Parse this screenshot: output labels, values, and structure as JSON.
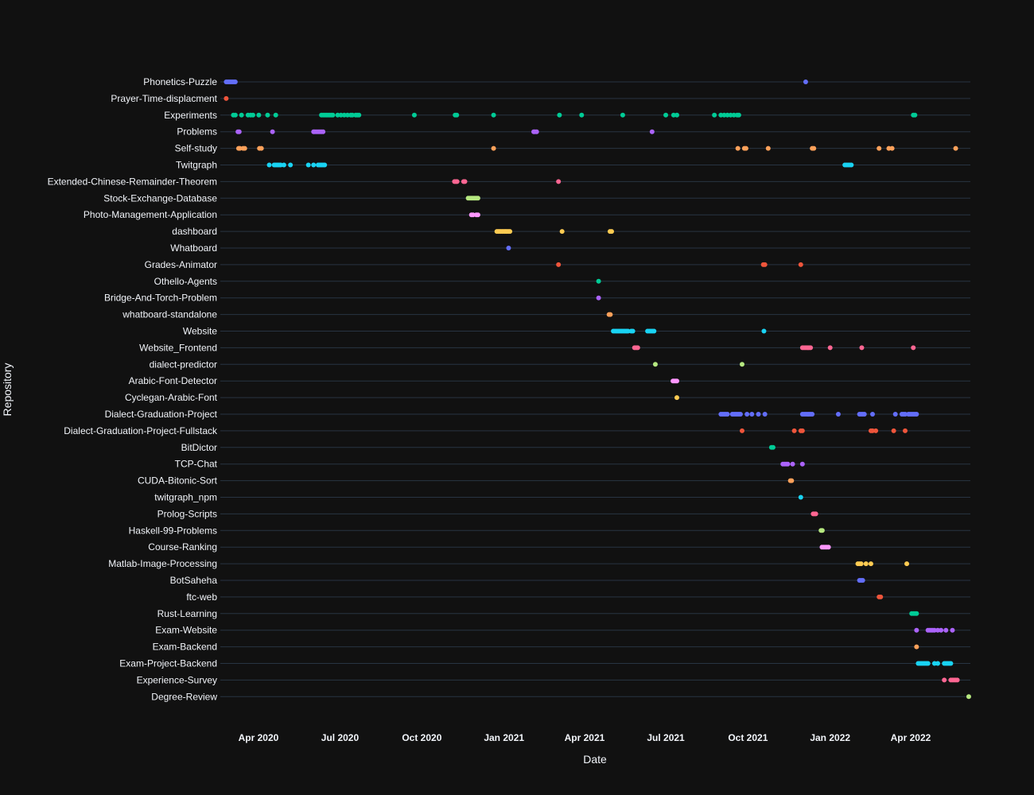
{
  "chart_data": {
    "type": "scatter",
    "title": "",
    "xlabel": "Date",
    "ylabel": "Repository",
    "xlim": [
      2020.13,
      2022.43
    ],
    "x_ticks": [
      {
        "label": "Apr 2020",
        "value": 2020.247
      },
      {
        "label": "Jul 2020",
        "value": 2020.497
      },
      {
        "label": "Oct 2020",
        "value": 2020.748
      },
      {
        "label": "Jan 2021",
        "value": 2021.0
      },
      {
        "label": "Apr 2021",
        "value": 2021.247
      },
      {
        "label": "Jul 2021",
        "value": 2021.496
      },
      {
        "label": "Oct 2021",
        "value": 2021.748
      },
      {
        "label": "Jan 2022",
        "value": 2022.0
      },
      {
        "label": "Apr 2022",
        "value": 2022.247
      }
    ],
    "x_unit": "decimal year (commit date)",
    "series": [
      {
        "name": "Phonetics-Puzzle",
        "color": "#636efa",
        "x": [
          2020.148,
          2020.152,
          2020.156,
          2020.16,
          2020.164,
          2020.168,
          2020.172,
          2020.176,
          2021.925
        ]
      },
      {
        "name": "Prayer-Time-displacment",
        "color": "#EF553B",
        "x": [
          2020.148
        ]
      },
      {
        "name": "Experiments",
        "color": "#00cc96",
        "x": [
          2020.17,
          2020.176,
          2020.195,
          2020.215,
          2020.223,
          2020.23,
          2020.248,
          2020.275,
          2020.3,
          2020.44,
          2020.445,
          2020.45,
          2020.455,
          2020.46,
          2020.465,
          2020.47,
          2020.475,
          2020.49,
          2020.5,
          2020.51,
          2020.52,
          2020.53,
          2020.535,
          2020.545,
          2020.55,
          2020.555,
          2020.725,
          2020.85,
          2020.855,
          2020.968,
          2021.17,
          2021.238,
          2021.364,
          2021.496,
          2021.52,
          2021.53,
          2021.645,
          2021.665,
          2021.675,
          2021.685,
          2021.695,
          2021.705,
          2021.715,
          2021.72,
          2022.255,
          2022.26
        ]
      },
      {
        "name": "Problems",
        "color": "#ab63fa",
        "x": [
          2020.184,
          2020.188,
          2020.29,
          2020.416,
          2020.42,
          2020.425,
          2020.43,
          2020.435,
          2020.44,
          2020.445,
          2021.091,
          2021.095,
          2021.1,
          2021.454
        ]
      },
      {
        "name": "Self-study",
        "color": "#FFA15A",
        "x": [
          2020.186,
          2020.19,
          2020.2,
          2020.205,
          2020.25,
          2020.256,
          2020.968,
          2021.717,
          2021.737,
          2021.742,
          2021.81,
          2021.945,
          2021.95,
          2022.15,
          2022.18,
          2022.19,
          2022.385
        ]
      },
      {
        "name": "Twitgraph",
        "color": "#19d3f3",
        "x": [
          2020.28,
          2020.295,
          2020.3,
          2020.305,
          2020.31,
          2020.315,
          2020.325,
          2020.345,
          2020.4,
          2020.416,
          2020.43,
          2020.435,
          2020.44,
          2020.445,
          2020.45,
          2022.045,
          2022.05,
          2022.055,
          2022.06,
          2022.065
        ]
      },
      {
        "name": "Extended-Chinese-Remainder-Theorem",
        "color": "#FF6692",
        "x": [
          2020.848,
          2020.852,
          2020.856,
          2020.876,
          2020.88,
          2021.167
        ]
      },
      {
        "name": "Stock-Exchange-Database",
        "color": "#B6E880",
        "x": [
          2020.89,
          2020.895,
          2020.9,
          2020.905,
          2020.91,
          2020.915,
          2020.92
        ]
      },
      {
        "name": "Photo-Management-Application",
        "color": "#FF97FF",
        "x": [
          2020.9,
          2020.905,
          2020.915,
          2020.92
        ]
      },
      {
        "name": "dashboard",
        "color": "#FECB52",
        "x": [
          2020.978,
          2020.982,
          2020.986,
          2020.99,
          2020.994,
          2020.998,
          2021.002,
          2021.006,
          2021.01,
          2021.014,
          2021.018,
          2021.178,
          2021.325,
          2021.33
        ]
      },
      {
        "name": "Whatboard",
        "color": "#636efa",
        "x": [
          2021.014
        ]
      },
      {
        "name": "Grades-Animator",
        "color": "#EF553B",
        "x": [
          2021.167,
          2021.795,
          2021.8,
          2021.91
        ]
      },
      {
        "name": "Othello-Agents",
        "color": "#00cc96",
        "x": [
          2021.29
        ]
      },
      {
        "name": "Bridge-And-Torch-Problem",
        "color": "#ab63fa",
        "x": [
          2021.29
        ]
      },
      {
        "name": "whatboard-standalone",
        "color": "#FFA15A",
        "x": [
          2021.322,
          2021.326
        ]
      },
      {
        "name": "Website",
        "color": "#19d3f3",
        "x": [
          2021.335,
          2021.34,
          2021.345,
          2021.35,
          2021.355,
          2021.36,
          2021.365,
          2021.37,
          2021.375,
          2021.38,
          2021.39,
          2021.395,
          2021.44,
          2021.445,
          2021.45,
          2021.455,
          2021.46,
          2021.797
        ]
      },
      {
        "name": "Website_Frontend",
        "color": "#FF6692",
        "x": [
          2021.4,
          2021.405,
          2021.41,
          2021.915,
          2021.92,
          2021.925,
          2021.93,
          2021.935,
          2021.94,
          2022.0,
          2022.097,
          2022.255
        ]
      },
      {
        "name": "dialect-predictor",
        "color": "#B6E880",
        "x": [
          2021.464,
          2021.73
        ]
      },
      {
        "name": "Arabic-Font-Detector",
        "color": "#FF97FF",
        "x": [
          2021.518,
          2021.522,
          2021.526,
          2021.53
        ]
      },
      {
        "name": "Cyclegan-Arabic-Font",
        "color": "#FECB52",
        "x": [
          2021.53
        ]
      },
      {
        "name": "Dialect-Graduation-Project",
        "color": "#636efa",
        "x": [
          2021.665,
          2021.67,
          2021.675,
          2021.68,
          2021.685,
          2021.7,
          2021.705,
          2021.71,
          2021.715,
          2021.72,
          2021.725,
          2021.745,
          2021.76,
          2021.78,
          2021.8,
          2021.915,
          2021.92,
          2021.925,
          2021.93,
          2021.935,
          2021.94,
          2021.945,
          2022.025,
          2022.09,
          2022.095,
          2022.1,
          2022.105,
          2022.13,
          2022.2,
          2022.22,
          2022.225,
          2022.23,
          2022.24,
          2022.245,
          2022.25,
          2022.255,
          2022.26,
          2022.265
        ]
      },
      {
        "name": "Dialect-Graduation-Project-Fullstack",
        "color": "#EF553B",
        "x": [
          2021.73,
          2021.89,
          2021.91,
          2021.915,
          2022.125,
          2022.13,
          2022.14,
          2022.195,
          2022.23
        ]
      },
      {
        "name": "BitDictor",
        "color": "#00cc96",
        "x": [
          2021.82,
          2021.825
        ]
      },
      {
        "name": "TCP-Chat",
        "color": "#ab63fa",
        "x": [
          2021.855,
          2021.86,
          2021.865,
          2021.87,
          2021.885,
          2021.915
        ]
      },
      {
        "name": "CUDA-Bitonic-Sort",
        "color": "#FFA15A",
        "x": [
          2021.878,
          2021.882
        ]
      },
      {
        "name": "twitgraph_npm",
        "color": "#19d3f3",
        "x": [
          2021.91
        ]
      },
      {
        "name": "Prolog-Scripts",
        "color": "#FF6692",
        "x": [
          2021.948,
          2021.952,
          2021.956
        ]
      },
      {
        "name": "Haskell-99-Problems",
        "color": "#B6E880",
        "x": [
          2021.972,
          2021.976
        ]
      },
      {
        "name": "Course-Ranking",
        "color": "#FF97FF",
        "x": [
          2021.975,
          2021.98,
          2021.985,
          2021.99,
          2021.995
        ]
      },
      {
        "name": "Matlab-Image-Processing",
        "color": "#FECB52",
        "x": [
          2022.085,
          2022.09,
          2022.095,
          2022.11,
          2022.125,
          2022.235
        ]
      },
      {
        "name": "BotSaheha",
        "color": "#636efa",
        "x": [
          2022.09,
          2022.095,
          2022.1
        ]
      },
      {
        "name": "ftc-web",
        "color": "#EF553B",
        "x": [
          2022.15,
          2022.155
        ]
      },
      {
        "name": "Rust-Learning",
        "color": "#00cc96",
        "x": [
          2022.25,
          2022.255,
          2022.26,
          2022.265
        ]
      },
      {
        "name": "Exam-Website",
        "color": "#ab63fa",
        "x": [
          2022.265,
          2022.3,
          2022.305,
          2022.31,
          2022.315,
          2022.32,
          2022.33,
          2022.34,
          2022.355,
          2022.375
        ]
      },
      {
        "name": "Exam-Backend",
        "color": "#FFA15A",
        "x": [
          2022.265
        ]
      },
      {
        "name": "Exam-Project-Backend",
        "color": "#19d3f3",
        "x": [
          2022.27,
          2022.275,
          2022.28,
          2022.285,
          2022.29,
          2022.295,
          2022.3,
          2022.32,
          2022.33,
          2022.35,
          2022.355,
          2022.36,
          2022.365,
          2022.37
        ]
      },
      {
        "name": "Experience-Survey",
        "color": "#FF6692",
        "x": [
          2022.35,
          2022.37,
          2022.375,
          2022.38,
          2022.385,
          2022.39
        ]
      },
      {
        "name": "Degree-Review",
        "color": "#B6E880",
        "x": [
          2022.425
        ]
      }
    ],
    "grid": true,
    "legend": "none"
  }
}
